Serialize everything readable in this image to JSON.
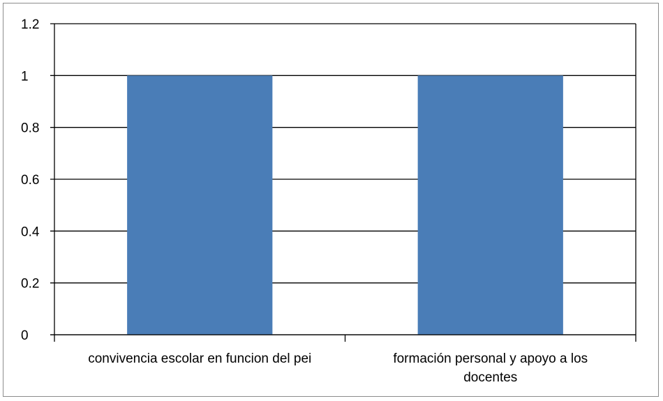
{
  "chart_data": {
    "type": "bar",
    "categories": [
      [
        "convivencia escolar en funcion del pei"
      ],
      [
        "formación personal y apoyo a los",
        "docentes"
      ]
    ],
    "values": [
      1,
      1
    ],
    "yticks": [
      "0",
      "0.2",
      "0.4",
      "0.6",
      "0.8",
      "1",
      "1.2"
    ],
    "ylim": [
      0,
      1.2
    ],
    "grid": true,
    "colors": {
      "bar": "#4a7db7",
      "grid": "#000000",
      "frame": "#8c8c8c"
    }
  }
}
